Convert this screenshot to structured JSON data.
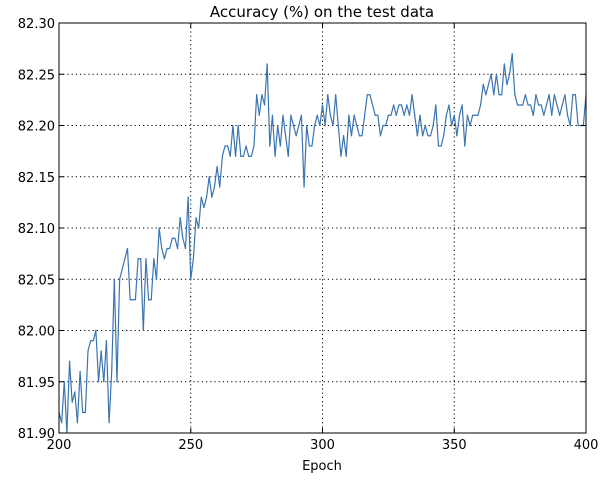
{
  "chart_data": {
    "type": "line",
    "title": "Accuracy (%) on the test data",
    "xlabel": "Epoch",
    "ylabel": "",
    "xlim": [
      200,
      400
    ],
    "ylim": [
      81.9,
      82.3
    ],
    "grid": true,
    "x_ticks": [
      200,
      250,
      300,
      350,
      400
    ],
    "x_tick_labels": [
      "200",
      "250",
      "300",
      "350",
      "400"
    ],
    "y_ticks": [
      81.9,
      81.95,
      82.0,
      82.05,
      82.1,
      82.15,
      82.2,
      82.25,
      82.3
    ],
    "y_tick_labels": [
      "81.90",
      "81.95",
      "82.00",
      "82.05",
      "82.10",
      "82.15",
      "82.20",
      "82.25",
      "82.30"
    ],
    "series": [
      {
        "color": "#3a74b0",
        "x_start": 200,
        "x_step": 1,
        "values": [
          81.92,
          81.91,
          81.95,
          81.9,
          81.97,
          81.93,
          81.94,
          81.91,
          81.96,
          81.92,
          81.92,
          81.98,
          81.99,
          81.99,
          82.0,
          81.95,
          81.98,
          81.95,
          81.99,
          81.91,
          81.96,
          82.05,
          81.95,
          82.05,
          82.06,
          82.07,
          82.08,
          82.03,
          82.03,
          82.03,
          82.07,
          82.07,
          82.0,
          82.07,
          82.03,
          82.03,
          82.07,
          82.05,
          82.1,
          82.08,
          82.07,
          82.08,
          82.08,
          82.09,
          82.09,
          82.08,
          82.11,
          82.09,
          82.08,
          82.13,
          82.05,
          82.07,
          82.11,
          82.1,
          82.13,
          82.12,
          82.13,
          82.15,
          82.13,
          82.14,
          82.16,
          82.14,
          82.17,
          82.18,
          82.18,
          82.17,
          82.2,
          82.17,
          82.2,
          82.17,
          82.17,
          82.18,
          82.17,
          82.17,
          82.18,
          82.23,
          82.21,
          82.23,
          82.22,
          82.26,
          82.18,
          82.21,
          82.17,
          82.2,
          82.18,
          82.21,
          82.19,
          82.17,
          82.21,
          82.2,
          82.19,
          82.2,
          82.21,
          82.14,
          82.2,
          82.18,
          82.18,
          82.2,
          82.21,
          82.2,
          82.22,
          82.2,
          82.23,
          82.21,
          82.2,
          82.23,
          82.2,
          82.17,
          82.19,
          82.17,
          82.21,
          82.19,
          82.21,
          82.2,
          82.19,
          82.19,
          82.21,
          82.23,
          82.23,
          82.22,
          82.21,
          82.21,
          82.19,
          82.2,
          82.2,
          82.21,
          82.21,
          82.22,
          82.21,
          82.22,
          82.22,
          82.21,
          82.22,
          82.21,
          82.23,
          82.21,
          82.19,
          82.21,
          82.19,
          82.2,
          82.19,
          82.19,
          82.2,
          82.22,
          82.18,
          82.18,
          82.19,
          82.21,
          82.22,
          82.2,
          82.21,
          82.19,
          82.21,
          82.22,
          82.18,
          82.21,
          82.2,
          82.21,
          82.21,
          82.21,
          82.22,
          82.24,
          82.23,
          82.24,
          82.25,
          82.23,
          82.25,
          82.23,
          82.23,
          82.26,
          82.24,
          82.25,
          82.27,
          82.23,
          82.22,
          82.22,
          82.22,
          82.23,
          82.22,
          82.22,
          82.21,
          82.23,
          82.22,
          82.22,
          82.21,
          82.22,
          82.23,
          82.21,
          82.23,
          82.22,
          82.21,
          82.22,
          82.23,
          82.21,
          82.2,
          82.23,
          82.23,
          82.2,
          82.2,
          82.2,
          82.23
        ]
      }
    ]
  }
}
